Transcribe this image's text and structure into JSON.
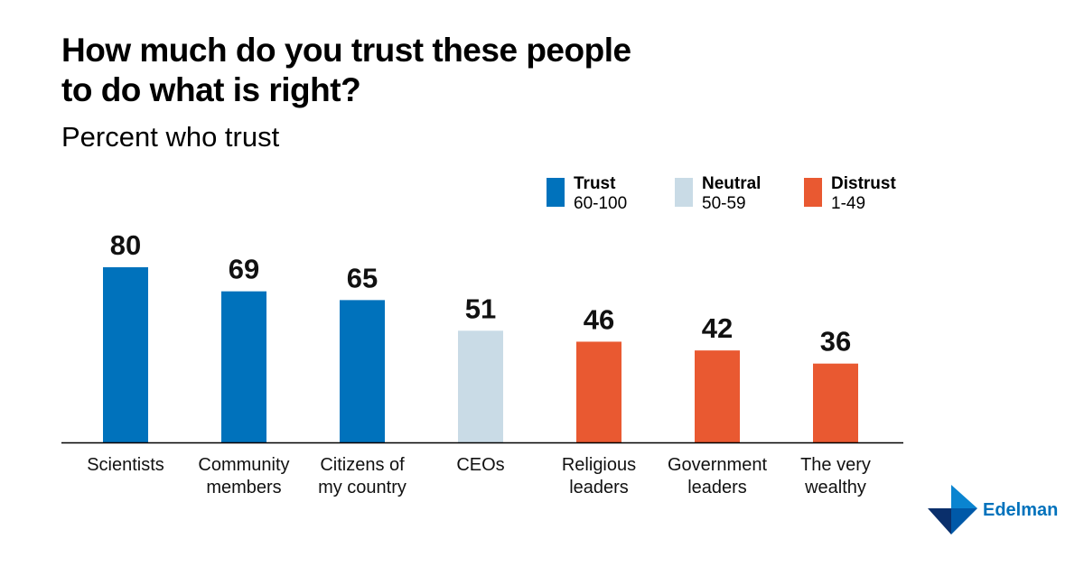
{
  "chart_data": {
    "type": "bar",
    "title": "How much do you trust these people to do what is right?",
    "subtitle": "Percent who trust",
    "categories": [
      [
        "Scientists"
      ],
      [
        "Community",
        "members"
      ],
      [
        "Citizens of",
        "my country"
      ],
      [
        "CEOs"
      ],
      [
        "Religious",
        "leaders"
      ],
      [
        "Government",
        "leaders"
      ],
      [
        "The very",
        "wealthy"
      ]
    ],
    "values": [
      80,
      69,
      65,
      51,
      46,
      42,
      36
    ],
    "value_labels": [
      "80",
      "69",
      "65",
      "51",
      "46",
      "42",
      "36"
    ],
    "ylim": [
      0,
      100
    ],
    "legend": [
      {
        "name": "Trust",
        "range": "60-100",
        "color": "#0072bc"
      },
      {
        "name": "Neutral",
        "range": "50-59",
        "color": "#c9dbe6"
      },
      {
        "name": "Distrust",
        "range": "1-49",
        "color": "#e95931"
      }
    ]
  },
  "brand": {
    "name": "Edelman",
    "colors": [
      "#0a2f6b",
      "#0059a8",
      "#0a84d0"
    ]
  }
}
